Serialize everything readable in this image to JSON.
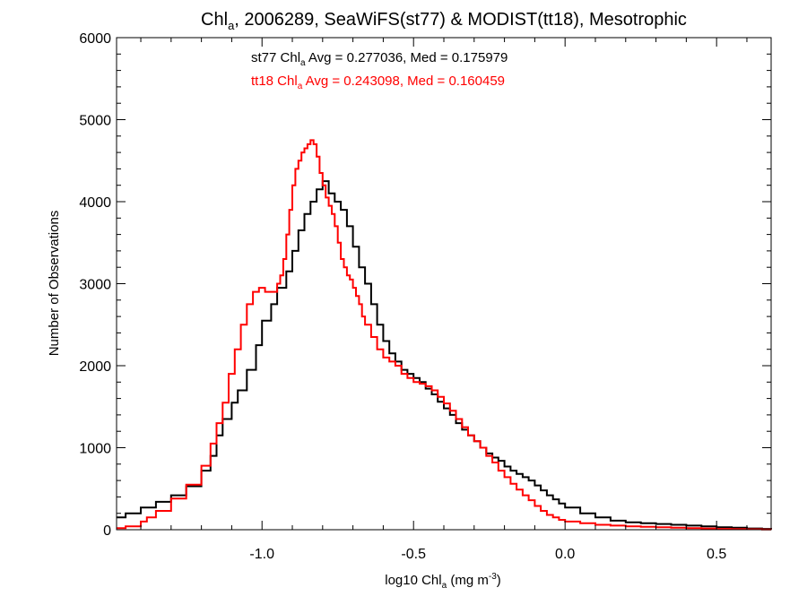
{
  "chart_data": {
    "type": "line",
    "title": {
      "prefix": "Chl",
      "sub": "a",
      "rest": ", 2006289, SeaWiFS(st77) & MODIST(tt18), Mesotrophic"
    },
    "xlabel": {
      "prefix": "log10 Chl",
      "sub": "a",
      "mid": " (mg m",
      "sup": "-3",
      "end": ")"
    },
    "ylabel": "Number of Observations",
    "xlim": [
      -1.48,
      0.68
    ],
    "ylim": [
      0,
      6000
    ],
    "x_ticks": [
      {
        "value": -1.0,
        "label": "-1.0"
      },
      {
        "value": -0.5,
        "label": "-0.5"
      },
      {
        "value": 0.0,
        "label": "0.0"
      },
      {
        "value": 0.5,
        "label": "0.5"
      }
    ],
    "y_ticks": [
      {
        "value": 0,
        "label": "0"
      },
      {
        "value": 1000,
        "label": "1000"
      },
      {
        "value": 2000,
        "label": "2000"
      },
      {
        "value": 3000,
        "label": "3000"
      },
      {
        "value": 4000,
        "label": "4000"
      },
      {
        "value": 5000,
        "label": "5000"
      },
      {
        "value": 6000,
        "label": "6000"
      }
    ],
    "annotations": [
      {
        "prefix": "st77 Chl",
        "sub": "a",
        "rest": " Avg = 0.277036, Med = 0.175979",
        "color": "#000000"
      },
      {
        "prefix": "tt18 Chl",
        "sub": "a",
        "rest": " Avg = 0.243098, Med = 0.160459",
        "color": "#ff0000"
      }
    ],
    "series": [
      {
        "color": "#000000",
        "step": true,
        "points": [
          [
            -1.48,
            150
          ],
          [
            -1.45,
            200
          ],
          [
            -1.4,
            270
          ],
          [
            -1.35,
            340
          ],
          [
            -1.3,
            420
          ],
          [
            -1.25,
            530
          ],
          [
            -1.2,
            720
          ],
          [
            -1.17,
            900
          ],
          [
            -1.15,
            1150
          ],
          [
            -1.13,
            1350
          ],
          [
            -1.1,
            1550
          ],
          [
            -1.08,
            1700
          ],
          [
            -1.05,
            1950
          ],
          [
            -1.02,
            2250
          ],
          [
            -1.0,
            2550
          ],
          [
            -0.97,
            2750
          ],
          [
            -0.95,
            2950
          ],
          [
            -0.92,
            3150
          ],
          [
            -0.9,
            3400
          ],
          [
            -0.88,
            3650
          ],
          [
            -0.86,
            3850
          ],
          [
            -0.84,
            4000
          ],
          [
            -0.82,
            4150
          ],
          [
            -0.8,
            4250
          ],
          [
            -0.78,
            4100
          ],
          [
            -0.76,
            4000
          ],
          [
            -0.74,
            3900
          ],
          [
            -0.72,
            3700
          ],
          [
            -0.7,
            3450
          ],
          [
            -0.68,
            3200
          ],
          [
            -0.66,
            3000
          ],
          [
            -0.64,
            2750
          ],
          [
            -0.62,
            2500
          ],
          [
            -0.6,
            2300
          ],
          [
            -0.58,
            2150
          ],
          [
            -0.56,
            2050
          ],
          [
            -0.54,
            1950
          ],
          [
            -0.52,
            1900
          ],
          [
            -0.5,
            1850
          ],
          [
            -0.48,
            1800
          ],
          [
            -0.46,
            1720
          ],
          [
            -0.44,
            1650
          ],
          [
            -0.42,
            1560
          ],
          [
            -0.4,
            1480
          ],
          [
            -0.38,
            1400
          ],
          [
            -0.36,
            1300
          ],
          [
            -0.34,
            1220
          ],
          [
            -0.32,
            1150
          ],
          [
            -0.3,
            1080
          ],
          [
            -0.28,
            1000
          ],
          [
            -0.26,
            930
          ],
          [
            -0.24,
            880
          ],
          [
            -0.22,
            840
          ],
          [
            -0.2,
            770
          ],
          [
            -0.18,
            720
          ],
          [
            -0.16,
            680
          ],
          [
            -0.14,
            640
          ],
          [
            -0.12,
            600
          ],
          [
            -0.1,
            540
          ],
          [
            -0.08,
            480
          ],
          [
            -0.06,
            420
          ],
          [
            -0.04,
            370
          ],
          [
            -0.02,
            320
          ],
          [
            0.0,
            270
          ],
          [
            0.05,
            200
          ],
          [
            0.1,
            150
          ],
          [
            0.15,
            110
          ],
          [
            0.2,
            90
          ],
          [
            0.25,
            80
          ],
          [
            0.3,
            70
          ],
          [
            0.35,
            60
          ],
          [
            0.4,
            50
          ],
          [
            0.45,
            40
          ],
          [
            0.5,
            30
          ],
          [
            0.55,
            25
          ],
          [
            0.6,
            15
          ],
          [
            0.65,
            10
          ],
          [
            0.68,
            5
          ]
        ]
      },
      {
        "color": "#ff0000",
        "step": true,
        "points": [
          [
            -1.48,
            20
          ],
          [
            -1.45,
            40
          ],
          [
            -1.4,
            100
          ],
          [
            -1.38,
            150
          ],
          [
            -1.35,
            230
          ],
          [
            -1.3,
            380
          ],
          [
            -1.25,
            550
          ],
          [
            -1.2,
            780
          ],
          [
            -1.17,
            1050
          ],
          [
            -1.15,
            1300
          ],
          [
            -1.13,
            1550
          ],
          [
            -1.11,
            1900
          ],
          [
            -1.09,
            2200
          ],
          [
            -1.07,
            2500
          ],
          [
            -1.05,
            2750
          ],
          [
            -1.03,
            2900
          ],
          [
            -1.01,
            2950
          ],
          [
            -0.99,
            2900
          ],
          [
            -0.97,
            2900
          ],
          [
            -0.95,
            3000
          ],
          [
            -0.94,
            3100
          ],
          [
            -0.93,
            3300
          ],
          [
            -0.92,
            3600
          ],
          [
            -0.91,
            3900
          ],
          [
            -0.9,
            4200
          ],
          [
            -0.89,
            4400
          ],
          [
            -0.88,
            4500
          ],
          [
            -0.87,
            4600
          ],
          [
            -0.86,
            4650
          ],
          [
            -0.85,
            4700
          ],
          [
            -0.84,
            4750
          ],
          [
            -0.83,
            4700
          ],
          [
            -0.82,
            4550
          ],
          [
            -0.81,
            4350
          ],
          [
            -0.8,
            4200
          ],
          [
            -0.79,
            4050
          ],
          [
            -0.78,
            3950
          ],
          [
            -0.77,
            3850
          ],
          [
            -0.76,
            3700
          ],
          [
            -0.75,
            3500
          ],
          [
            -0.74,
            3300
          ],
          [
            -0.73,
            3200
          ],
          [
            -0.72,
            3100
          ],
          [
            -0.71,
            3050
          ],
          [
            -0.7,
            2950
          ],
          [
            -0.69,
            2850
          ],
          [
            -0.68,
            2750
          ],
          [
            -0.67,
            2600
          ],
          [
            -0.66,
            2500
          ],
          [
            -0.64,
            2350
          ],
          [
            -0.62,
            2200
          ],
          [
            -0.6,
            2100
          ],
          [
            -0.58,
            2050
          ],
          [
            -0.56,
            2000
          ],
          [
            -0.54,
            1900
          ],
          [
            -0.52,
            1850
          ],
          [
            -0.5,
            1800
          ],
          [
            -0.48,
            1780
          ],
          [
            -0.46,
            1750
          ],
          [
            -0.44,
            1700
          ],
          [
            -0.42,
            1620
          ],
          [
            -0.4,
            1540
          ],
          [
            -0.38,
            1450
          ],
          [
            -0.36,
            1350
          ],
          [
            -0.34,
            1250
          ],
          [
            -0.32,
            1150
          ],
          [
            -0.3,
            1080
          ],
          [
            -0.28,
            1000
          ],
          [
            -0.26,
            900
          ],
          [
            -0.24,
            820
          ],
          [
            -0.22,
            720
          ],
          [
            -0.2,
            640
          ],
          [
            -0.18,
            560
          ],
          [
            -0.16,
            490
          ],
          [
            -0.14,
            420
          ],
          [
            -0.12,
            360
          ],
          [
            -0.1,
            290
          ],
          [
            -0.08,
            230
          ],
          [
            -0.06,
            180
          ],
          [
            -0.04,
            150
          ],
          [
            -0.02,
            120
          ],
          [
            0.0,
            100
          ],
          [
            0.05,
            80
          ],
          [
            0.1,
            60
          ],
          [
            0.15,
            50
          ],
          [
            0.2,
            40
          ],
          [
            0.25,
            35
          ],
          [
            0.3,
            30
          ],
          [
            0.35,
            25
          ],
          [
            0.4,
            20
          ],
          [
            0.45,
            15
          ],
          [
            0.5,
            10
          ],
          [
            0.55,
            8
          ],
          [
            0.6,
            5
          ],
          [
            0.65,
            3
          ],
          [
            0.68,
            2
          ]
        ]
      }
    ],
    "grid": false,
    "legend": "none"
  }
}
